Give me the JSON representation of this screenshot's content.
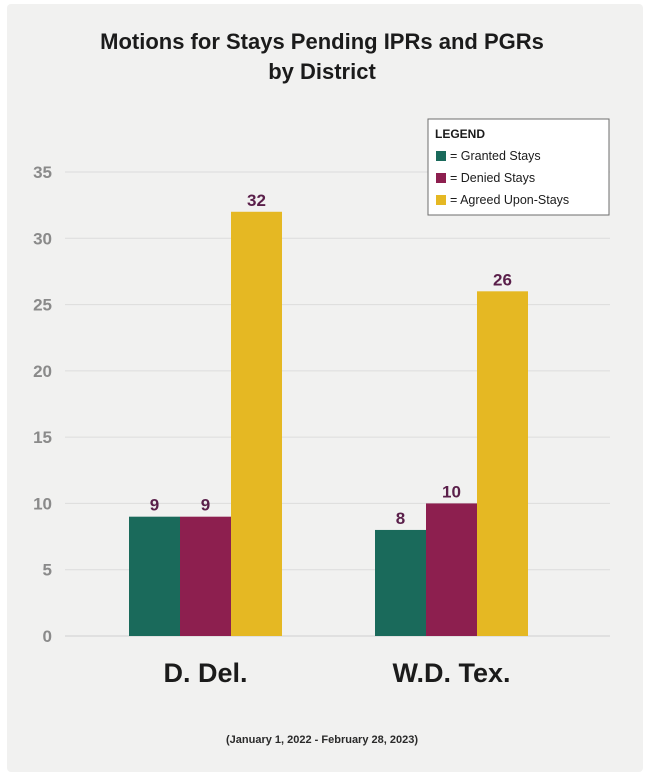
{
  "chart_data": {
    "type": "bar",
    "title_lines": [
      "Motions for Stays Pending IPRs and PGRs",
      "by District"
    ],
    "categories": [
      "D. Del.",
      "W.D. Tex."
    ],
    "series": [
      {
        "name": "= Granted Stays",
        "color": "#1a6a5b",
        "values": [
          9,
          8
        ]
      },
      {
        "name": "= Denied Stays",
        "color": "#8d1f4f",
        "values": [
          9,
          10
        ]
      },
      {
        "name": "= Agreed Upon-Stays",
        "color": "#e5b823",
        "values": [
          32,
          26
        ]
      }
    ],
    "ylim": [
      0,
      35
    ],
    "yticks": [
      0,
      5,
      10,
      15,
      20,
      25,
      30,
      35
    ],
    "grid": true,
    "legend_title": "LEGEND",
    "legend_position": "top-right",
    "footnote": "(January 1, 2022 - February 28, 2023)"
  }
}
